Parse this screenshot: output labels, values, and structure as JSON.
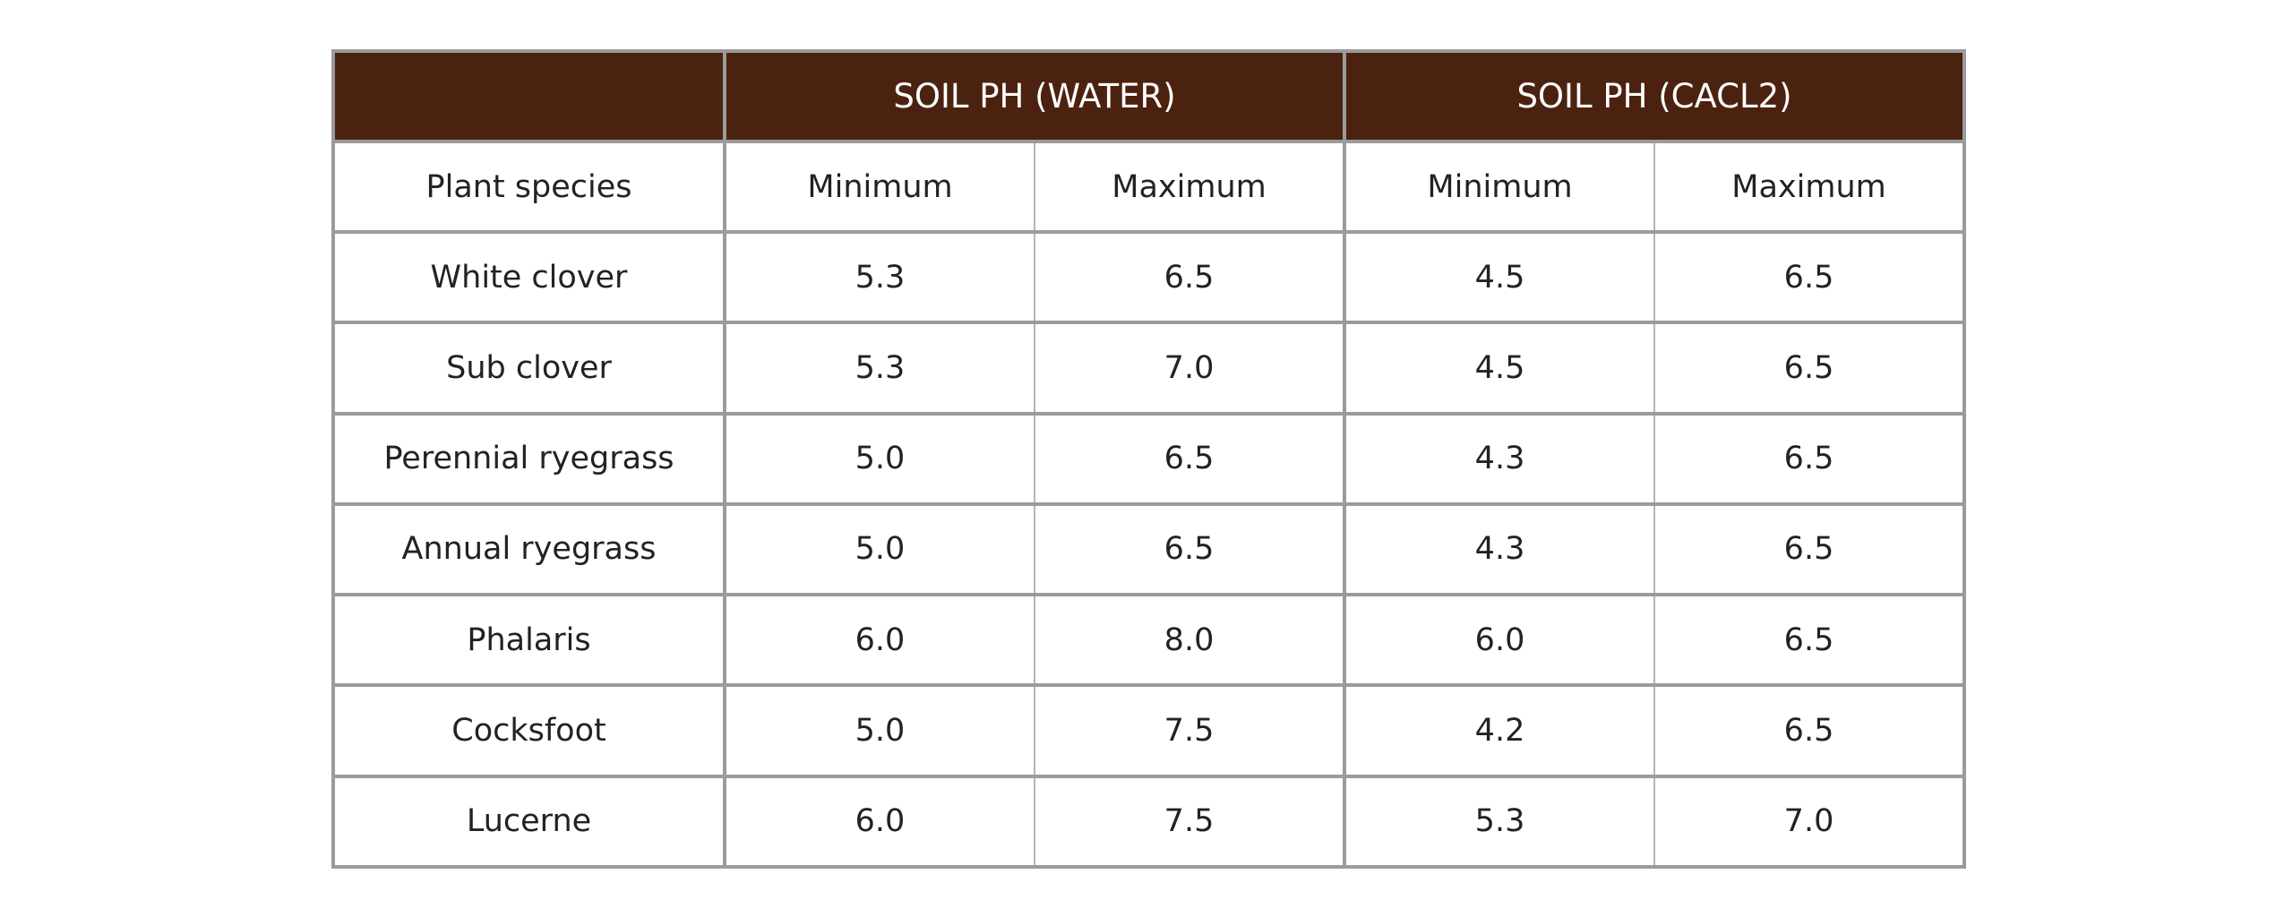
{
  "table": {
    "groups": [
      {
        "label": ""
      },
      {
        "label": "SOIL PH (WATER)"
      },
      {
        "label": "SOIL PH (CACL2)"
      }
    ],
    "header": [
      "Plant species",
      "Minimum",
      "Maximum",
      "Minimum",
      "Maximum"
    ],
    "rows": [
      [
        "White clover",
        "5.3",
        "6.5",
        "4.5",
        "6.5"
      ],
      [
        "Sub clover",
        "5.3",
        "7.0",
        "4.5",
        "6.5"
      ],
      [
        "Perennial ryegrass",
        "5.0",
        "6.5",
        "4.3",
        "6.5"
      ],
      [
        "Annual ryegrass",
        "5.0",
        "6.5",
        "4.3",
        "6.5"
      ],
      [
        "Phalaris",
        "6.0",
        "8.0",
        "6.0",
        "6.5"
      ],
      [
        "Cocksfoot",
        "5.0",
        "7.5",
        "4.2",
        "6.5"
      ],
      [
        "Lucerne",
        "6.0",
        "7.5",
        "5.3",
        "7.0"
      ]
    ],
    "colors": {
      "header_background": "#4b2210",
      "header_text": "#ffffff",
      "border": "#9b9b9b"
    }
  }
}
